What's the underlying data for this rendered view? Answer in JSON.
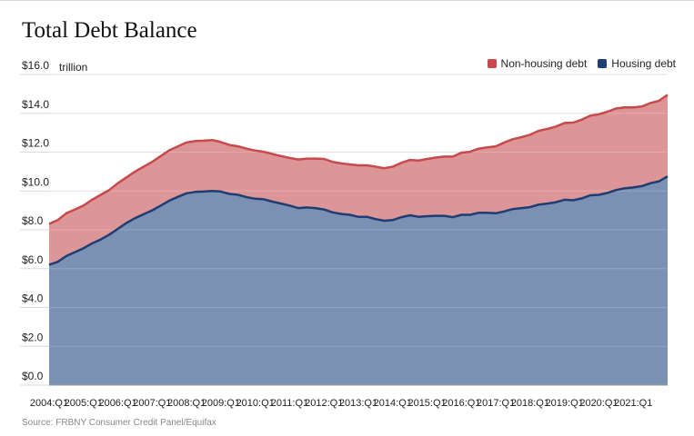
{
  "title": "Total Debt Balance",
  "source": "Source: FRBNY Consumer Credit Panel/Equifax",
  "colors": {
    "non_housing_fill": "#dd9697",
    "non_housing_line": "#c9484b",
    "housing_fill": "#7a91b3",
    "housing_line": "#1f3d73",
    "grid": "#d9d9d9"
  },
  "chart_data": {
    "type": "area",
    "title": "Total Debt Balance",
    "ylabel": "trillion",
    "ylim": [
      0,
      16
    ],
    "yticks": [
      "$0.0",
      "$2.0",
      "$4.0",
      "$6.0",
      "$8.0",
      "$10.0",
      "$12.0",
      "$14.0",
      "$16.0"
    ],
    "y_unit_label": "trillion",
    "grid": true,
    "stacked": true,
    "legend_position": "top-right",
    "x_tick_labels": [
      "2004:Q1",
      "2005:Q1",
      "2006:Q1",
      "2007:Q1",
      "2008:Q1",
      "2009:Q1",
      "2010:Q1",
      "2011:Q1",
      "2012:Q1",
      "2013:Q1",
      "2014:Q1",
      "2015:Q1",
      "2016:Q1",
      "2017:Q1",
      "2018:Q1",
      "2019:Q1",
      "2020:Q1",
      "2021:Q1"
    ],
    "x_start": "2004:Q1",
    "x_end": "2021:Q1",
    "series": [
      {
        "name": "Housing debt",
        "values": [
          6.2,
          6.35,
          6.65,
          6.85,
          7.05,
          7.3,
          7.5,
          7.75,
          8.05,
          8.35,
          8.6,
          8.8,
          9.0,
          9.25,
          9.5,
          9.7,
          9.88,
          9.95,
          9.97,
          10.0,
          9.97,
          9.85,
          9.8,
          9.68,
          9.6,
          9.57,
          9.45,
          9.35,
          9.25,
          9.12,
          9.15,
          9.12,
          9.05,
          8.9,
          8.82,
          8.77,
          8.67,
          8.67,
          8.55,
          8.47,
          8.5,
          8.65,
          8.75,
          8.67,
          8.7,
          8.72,
          8.72,
          8.65,
          8.77,
          8.77,
          8.88,
          8.88,
          8.85,
          8.95,
          9.07,
          9.12,
          9.17,
          9.3,
          9.35,
          9.42,
          9.55,
          9.52,
          9.62,
          9.78,
          9.8,
          9.9,
          10.05,
          10.14,
          10.18,
          10.25,
          10.4,
          10.5,
          10.75
        ]
      },
      {
        "name": "Non-housing debt",
        "values": [
          2.1,
          2.15,
          2.2,
          2.2,
          2.2,
          2.25,
          2.3,
          2.3,
          2.35,
          2.35,
          2.4,
          2.45,
          2.5,
          2.55,
          2.6,
          2.6,
          2.62,
          2.62,
          2.62,
          2.62,
          2.55,
          2.52,
          2.5,
          2.5,
          2.48,
          2.45,
          2.45,
          2.45,
          2.45,
          2.5,
          2.52,
          2.55,
          2.6,
          2.6,
          2.6,
          2.6,
          2.65,
          2.65,
          2.7,
          2.7,
          2.75,
          2.8,
          2.85,
          2.9,
          2.95,
          3.0,
          3.05,
          3.12,
          3.2,
          3.25,
          3.3,
          3.37,
          3.45,
          3.55,
          3.6,
          3.65,
          3.73,
          3.8,
          3.85,
          3.9,
          3.95,
          4.0,
          4.05,
          4.1,
          4.15,
          4.18,
          4.2,
          4.16,
          4.12,
          4.1,
          4.13,
          4.15,
          4.2
        ]
      }
    ]
  }
}
